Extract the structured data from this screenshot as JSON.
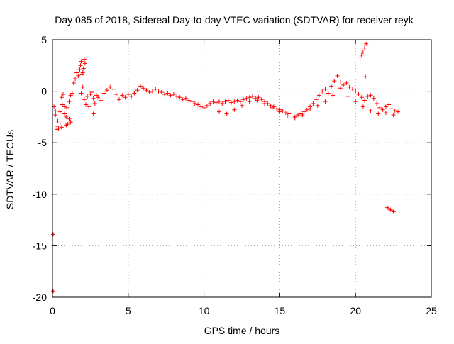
{
  "chart_data": {
    "type": "scatter",
    "title": "Day 085 of 2018, Sidereal Day-to-day VTEC variation (SDTVAR) for receiver reyk",
    "xlabel": "GPS time / hours",
    "ylabel": "SDTVAR / TECUs",
    "xlim": [
      0,
      25
    ],
    "ylim": [
      -20,
      5
    ],
    "xticks": [
      0,
      5,
      10,
      15,
      20,
      25
    ],
    "yticks": [
      5,
      0,
      -5,
      -10,
      -15,
      -20
    ],
    "xtick_labels": [
      "0",
      "5",
      "10",
      "15",
      "20",
      "25"
    ],
    "ytick_labels": [
      "5",
      "0",
      "-5",
      "-10",
      "-15",
      "-20"
    ],
    "grid": true,
    "marker": "+",
    "color": "#ff0000",
    "series": [
      {
        "name": "reyk",
        "x": [
          0.05,
          0.05,
          0.1,
          0.2,
          0.3,
          0.4,
          0.5,
          0.6,
          0.7,
          0.8,
          0.9,
          1.0,
          1.1,
          1.2,
          0.2,
          0.35,
          0.5,
          0.65,
          0.8,
          0.95,
          1.1,
          0.3,
          0.6,
          0.9,
          1.2,
          1.3,
          1.4,
          1.5,
          1.6,
          1.7,
          1.8,
          1.85,
          1.9,
          1.95,
          2.0,
          2.05,
          2.1,
          2.15,
          1.9,
          2.0,
          2.1,
          2.2,
          2.3,
          2.4,
          2.5,
          2.6,
          2.7,
          2.8,
          2.9,
          3.0,
          3.2,
          3.4,
          3.6,
          3.8,
          4.0,
          4.2,
          4.4,
          4.6,
          4.8,
          5.0,
          5.2,
          5.4,
          5.6,
          5.8,
          6.0,
          6.2,
          6.4,
          6.6,
          6.8,
          7.0,
          7.2,
          7.4,
          7.6,
          7.8,
          8.0,
          8.2,
          8.4,
          8.6,
          8.8,
          9.0,
          9.2,
          9.4,
          9.6,
          9.8,
          10.0,
          10.2,
          10.4,
          10.6,
          10.8,
          11.0,
          11.2,
          11.4,
          11.6,
          11.8,
          12.0,
          12.2,
          12.4,
          12.6,
          12.8,
          13.0,
          13.2,
          13.4,
          13.6,
          13.8,
          14.0,
          14.2,
          14.4,
          14.6,
          14.8,
          15.0,
          15.2,
          15.4,
          15.6,
          15.8,
          16.0,
          16.2,
          16.4,
          16.6,
          16.8,
          17.0,
          17.2,
          17.4,
          17.6,
          17.8,
          18.0,
          18.2,
          18.4,
          18.6,
          18.8,
          19.0,
          19.2,
          19.4,
          19.6,
          19.8,
          20.0,
          20.2,
          20.4,
          20.6,
          20.8,
          21.0,
          21.2,
          21.4,
          21.6,
          21.8,
          22.0,
          22.2,
          22.4,
          22.6,
          22.8,
          11.0,
          11.5,
          12.0,
          12.5,
          13.0,
          13.5,
          14.0,
          14.5,
          15.0,
          15.5,
          16.0,
          16.5,
          17.0,
          17.5,
          18.0,
          18.5,
          19.0,
          19.5,
          20.0,
          20.5,
          21.0,
          21.5,
          22.0,
          22.5,
          2.7,
          20.3,
          20.4,
          20.5,
          20.6,
          20.7,
          20.65,
          22.1,
          22.2,
          22.3,
          22.4,
          22.5
        ],
        "y": [
          -13.9,
          -19.4,
          -1.5,
          -2.3,
          -3.4,
          -3.6,
          -2.0,
          -0.6,
          -0.3,
          -1.5,
          -2.5,
          -3.2,
          -1.0,
          -0.4,
          -1.9,
          -2.9,
          -3.1,
          -1.3,
          -2.2,
          -1.6,
          -2.7,
          -3.7,
          -3.5,
          -3.3,
          -3.0,
          -0.2,
          0.8,
          1.2,
          1.8,
          1.5,
          2.1,
          2.5,
          2.9,
          1.6,
          1.8,
          2.2,
          3.1,
          2.7,
          -0.2,
          0.4,
          -0.8,
          -1.3,
          -0.5,
          -1.5,
          -0.3,
          -0.1,
          -0.7,
          -1.2,
          -0.4,
          -0.6,
          -0.9,
          -0.2,
          0.1,
          0.4,
          0.2,
          -0.3,
          -0.8,
          -0.4,
          -0.6,
          -0.3,
          -0.5,
          -0.2,
          0.1,
          0.5,
          0.3,
          0.1,
          -0.1,
          0.0,
          0.2,
          0.0,
          -0.1,
          -0.3,
          -0.2,
          -0.4,
          -0.3,
          -0.5,
          -0.6,
          -0.8,
          -0.7,
          -0.9,
          -1.0,
          -1.2,
          -1.3,
          -1.5,
          -1.6,
          -1.4,
          -1.2,
          -1.0,
          -1.1,
          -1.0,
          -1.2,
          -1.0,
          -0.9,
          -1.1,
          -1.0,
          -0.9,
          -1.0,
          -0.8,
          -0.7,
          -0.6,
          -0.5,
          -0.7,
          -0.6,
          -0.8,
          -1.0,
          -1.2,
          -1.4,
          -1.5,
          -1.7,
          -1.8,
          -1.9,
          -2.1,
          -2.2,
          -2.4,
          -2.5,
          -2.3,
          -2.2,
          -2.0,
          -1.8,
          -1.5,
          -1.2,
          -0.8,
          -0.4,
          0.0,
          0.2,
          -0.2,
          0.5,
          1.0,
          1.5,
          0.9,
          0.6,
          0.8,
          0.4,
          0.2,
          0.0,
          -0.3,
          -0.6,
          -0.9,
          -0.5,
          -0.4,
          -0.7,
          -1.2,
          -1.6,
          -1.8,
          -1.5,
          -1.3,
          -1.7,
          -1.9,
          -2.0,
          -2.0,
          -2.2,
          -1.8,
          -1.4,
          -1.0,
          -0.9,
          -1.2,
          -1.6,
          -2.0,
          -2.4,
          -2.6,
          -2.3,
          -1.7,
          -1.4,
          -1.0,
          -0.4,
          0.3,
          -0.5,
          -1.0,
          -1.5,
          -1.9,
          -2.2,
          -2.1,
          -2.3,
          -2.2,
          3.3,
          3.5,
          3.8,
          4.2,
          4.6,
          1.4,
          -11.3,
          -11.4,
          -11.5,
          -11.6,
          -11.7
        ]
      }
    ]
  }
}
